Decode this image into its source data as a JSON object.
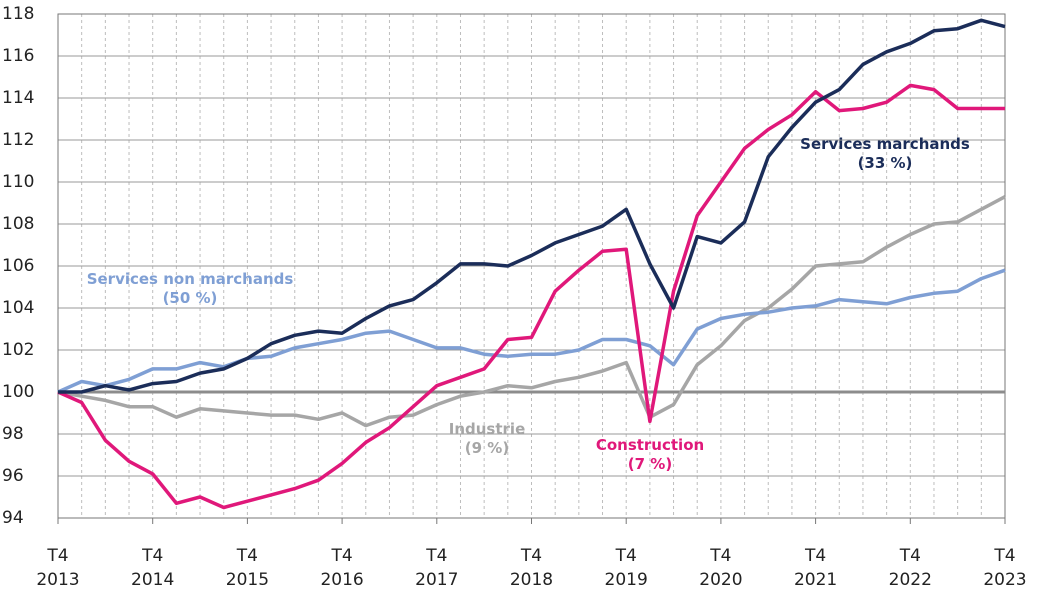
{
  "chart_data": {
    "type": "line",
    "categories": [
      "T4 2013",
      null,
      null,
      null,
      "T4 2014",
      null,
      null,
      null,
      "T4 2015",
      null,
      null,
      null,
      "T4 2016",
      null,
      null,
      null,
      "T4 2017",
      null,
      null,
      null,
      "T4 2018",
      null,
      null,
      null,
      "T4 2019",
      null,
      null,
      null,
      "T4 2020",
      null,
      null,
      null,
      "T4 2021",
      null,
      null,
      null,
      "T4 2022",
      null,
      null,
      null,
      "T4 2023"
    ],
    "ylim": [
      94,
      118
    ],
    "yticks": [
      94,
      96,
      98,
      100,
      102,
      104,
      106,
      108,
      110,
      112,
      114,
      116,
      118
    ],
    "grid": true,
    "reference_line": 100,
    "series": [
      {
        "name": "Industrie",
        "share": "(9 %)",
        "color": "#a6a6a6",
        "values": [
          100,
          99.8,
          99.6,
          99.3,
          99.3,
          98.8,
          99.2,
          99.1,
          99.0,
          98.9,
          98.9,
          98.7,
          99.0,
          98.4,
          98.8,
          98.9,
          99.4,
          99.8,
          100.0,
          100.3,
          100.2,
          100.5,
          100.7,
          101.0,
          101.4,
          98.8,
          99.4,
          101.3,
          102.2,
          103.4,
          104.0,
          104.9,
          106.0,
          106.1,
          106.2,
          106.9,
          107.5,
          108.0,
          108.1,
          108.7,
          109.3
        ]
      },
      {
        "name": "Services non marchands",
        "share": "(50 %)",
        "color": "#7f9fd4",
        "values": [
          100,
          100.5,
          100.3,
          100.6,
          101.1,
          101.1,
          101.4,
          101.2,
          101.6,
          101.7,
          102.1,
          102.3,
          102.5,
          102.8,
          102.9,
          102.5,
          102.1,
          102.1,
          101.8,
          101.7,
          101.8,
          101.8,
          102.0,
          102.5,
          102.5,
          102.2,
          101.3,
          103.0,
          103.5,
          103.7,
          103.8,
          104.0,
          104.1,
          104.4,
          104.3,
          104.2,
          104.5,
          104.7,
          104.8,
          105.4,
          105.8
        ]
      },
      {
        "name": "Construction",
        "share": "(7 %)",
        "color": "#e0187a",
        "values": [
          100,
          99.5,
          97.7,
          96.7,
          96.1,
          94.7,
          95.0,
          94.5,
          94.8,
          95.1,
          95.4,
          95.8,
          96.6,
          97.6,
          98.3,
          99.3,
          100.3,
          100.7,
          101.1,
          102.5,
          102.6,
          104.8,
          105.8,
          106.7,
          106.8,
          98.6,
          104.8,
          108.4,
          110.0,
          111.6,
          112.5,
          113.2,
          114.3,
          113.4,
          113.5,
          113.8,
          114.6,
          114.4,
          113.5,
          113.5,
          113.5
        ]
      },
      {
        "name": "Services marchands",
        "share": "(33 %)",
        "color": "#1b2d59",
        "values": [
          100,
          100.0,
          100.3,
          100.1,
          100.4,
          100.5,
          100.9,
          101.1,
          101.6,
          102.3,
          102.7,
          102.9,
          102.8,
          103.5,
          104.1,
          104.4,
          105.2,
          106.1,
          106.1,
          106.0,
          106.5,
          107.1,
          107.5,
          107.9,
          108.7,
          106.1,
          104.0,
          107.4,
          107.1,
          108.1,
          111.2,
          112.6,
          113.8,
          114.4,
          115.6,
          116.2,
          116.6,
          117.2,
          117.3,
          117.7,
          117.4
        ]
      }
    ]
  }
}
